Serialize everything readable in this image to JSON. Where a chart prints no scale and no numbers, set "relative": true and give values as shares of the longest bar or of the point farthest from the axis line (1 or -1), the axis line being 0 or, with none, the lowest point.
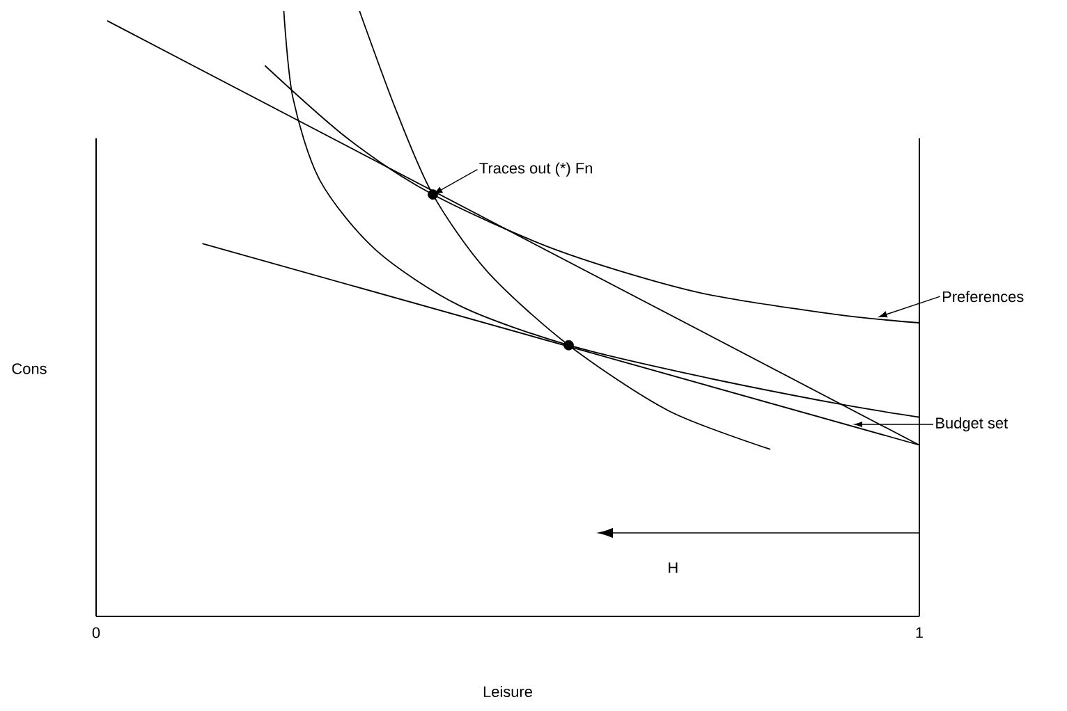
{
  "chart_data": {
    "type": "line",
    "relative": true,
    "xlabel": "Leisure",
    "ylabel": "Cons",
    "xlim": [
      0,
      1
    ],
    "xticks": [
      0,
      1
    ],
    "grid": false,
    "marker": "none",
    "line_style": "solid",
    "series": [
      {
        "color": "#000000",
        "x": [
          0.0135,
          1
        ],
        "values": [
          0.984,
          0.283
        ]
      },
      {
        "color": "#000000",
        "x": [
          0.129,
          1
        ],
        "values": [
          0.616,
          0.283
        ]
      },
      {
        "color": "#000000",
        "x": [
          0.205,
          0.306,
          0.409,
          0.56,
          0.729,
          0.898,
          1
        ],
        "values": [
          0.91,
          0.789,
          0.697,
          0.605,
          0.536,
          0.499,
          0.485
        ]
      },
      {
        "color": "#000000",
        "x": [
          0.228,
          0.239,
          0.272,
          0.34,
          0.442,
          0.574,
          0.729,
          0.898,
          1
        ],
        "values": [
          1.0,
          0.857,
          0.72,
          0.605,
          0.513,
          0.448,
          0.398,
          0.352,
          0.329
        ]
      },
      {
        "color": "#000000",
        "x": [
          0.32,
          0.365,
          0.409,
          0.475,
          0.574,
          0.695,
          0.819
        ],
        "values": [
          1.0,
          0.834,
          0.697,
          0.57,
          0.448,
          0.34,
          0.276
        ]
      },
      {
        "type": "scatter",
        "marker": "circle",
        "color": "#000000",
        "x": [
          0.409,
          0.574
        ],
        "values": [
          0.697,
          0.448
        ]
      }
    ],
    "ref_lines": [
      {
        "axis": "x",
        "value": 1,
        "color": "#000000"
      }
    ],
    "annotations": [
      {
        "text": "Traces out (*) Fn",
        "x": 0.409,
        "y": 0.697
      },
      {
        "text": "Preferences",
        "x": 0.949,
        "y": 0.494
      },
      "Budget set",
      "H"
    ]
  }
}
